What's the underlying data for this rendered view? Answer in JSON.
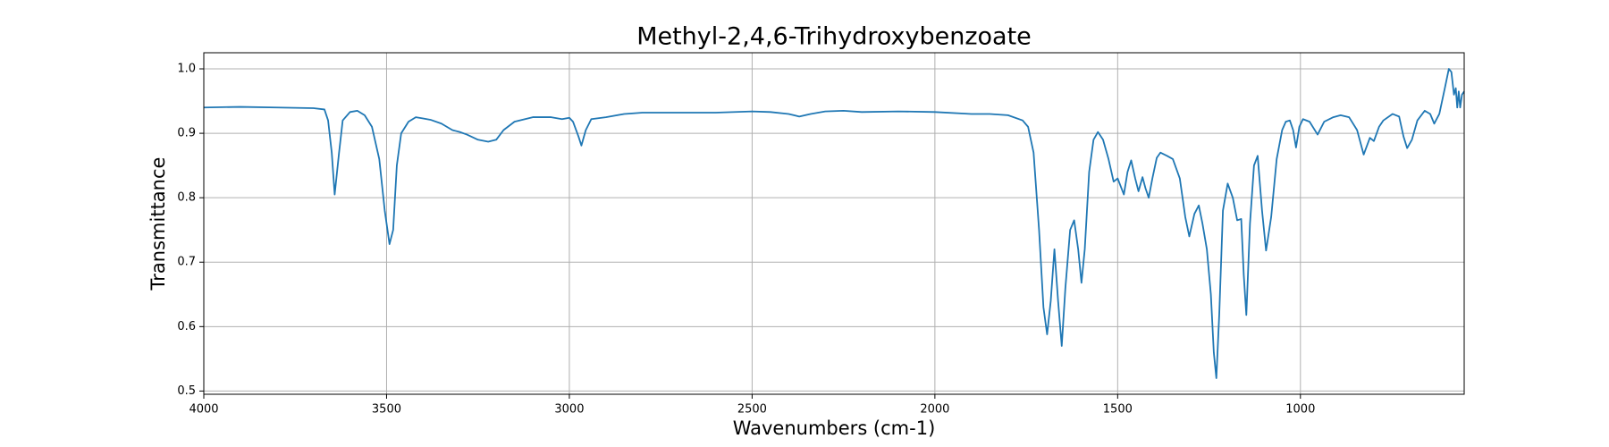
{
  "chart_data": {
    "type": "line",
    "title": "Methyl-2,4,6-Trihydroxybenzoate",
    "x_label": "Wavenumbers (cm-1)",
    "y_label": "Transmittance",
    "xlim": [
      4000,
      552
    ],
    "ylim": [
      0.495,
      1.025
    ],
    "xticks": [
      4000,
      3500,
      3000,
      2500,
      2000,
      1500,
      1000
    ],
    "yticks": [
      0.5,
      0.6,
      0.7,
      0.8,
      0.9,
      {
        "value": 1,
        "label": "1.0"
      }
    ],
    "grid": true,
    "x": [
      4000,
      3900,
      3800,
      3700,
      3670,
      3660,
      3650,
      3642,
      3630,
      3620,
      3600,
      3580,
      3560,
      3540,
      3520,
      3505,
      3492,
      3482,
      3472,
      3460,
      3440,
      3420,
      3400,
      3380,
      3350,
      3320,
      3300,
      3280,
      3250,
      3222,
      3200,
      3180,
      3150,
      3100,
      3050,
      3020,
      3000,
      2990,
      2975,
      2967,
      2955,
      2940,
      2900,
      2850,
      2800,
      2700,
      2600,
      2500,
      2450,
      2400,
      2371,
      2340,
      2300,
      2250,
      2200,
      2100,
      2000,
      1900,
      1850,
      1800,
      1760,
      1745,
      1730,
      1715,
      1703,
      1693,
      1683,
      1673,
      1663,
      1653,
      1643,
      1630,
      1619,
      1608,
      1599,
      1590,
      1578,
      1566,
      1554,
      1540,
      1525,
      1511,
      1500,
      1483,
      1473,
      1463,
      1452,
      1443,
      1432,
      1424,
      1415,
      1405,
      1393,
      1383,
      1365,
      1349,
      1330,
      1315,
      1304,
      1290,
      1278,
      1268,
      1256,
      1245,
      1237,
      1230,
      1222,
      1212,
      1199,
      1185,
      1173,
      1162,
      1155,
      1148,
      1138,
      1127,
      1117,
      1105,
      1094,
      1080,
      1065,
      1050,
      1040,
      1029,
      1020,
      1012,
      1003,
      993,
      975,
      953,
      935,
      910,
      890,
      867,
      845,
      827,
      810,
      799,
      785,
      773,
      748,
      730,
      718,
      708,
      695,
      680,
      660,
      645,
      634,
      620,
      605,
      594,
      587,
      580,
      575,
      571,
      567,
      563,
      558,
      552
    ],
    "series": [
      {
        "name": "Transmittance",
        "color": "#1f77b4",
        "values": [
          0.94,
          0.941,
          0.94,
          0.939,
          0.937,
          0.92,
          0.87,
          0.805,
          0.87,
          0.92,
          0.933,
          0.935,
          0.928,
          0.91,
          0.86,
          0.78,
          0.728,
          0.75,
          0.85,
          0.9,
          0.918,
          0.925,
          0.923,
          0.921,
          0.915,
          0.905,
          0.902,
          0.898,
          0.89,
          0.887,
          0.89,
          0.905,
          0.918,
          0.925,
          0.925,
          0.922,
          0.924,
          0.918,
          0.895,
          0.881,
          0.905,
          0.922,
          0.925,
          0.93,
          0.932,
          0.932,
          0.932,
          0.934,
          0.933,
          0.93,
          0.926,
          0.93,
          0.934,
          0.935,
          0.933,
          0.934,
          0.933,
          0.93,
          0.93,
          0.928,
          0.92,
          0.91,
          0.87,
          0.75,
          0.63,
          0.588,
          0.64,
          0.72,
          0.64,
          0.57,
          0.66,
          0.75,
          0.765,
          0.72,
          0.668,
          0.72,
          0.84,
          0.89,
          0.902,
          0.89,
          0.86,
          0.825,
          0.83,
          0.805,
          0.84,
          0.858,
          0.83,
          0.81,
          0.832,
          0.815,
          0.8,
          0.83,
          0.862,
          0.87,
          0.865,
          0.86,
          0.83,
          0.77,
          0.74,
          0.775,
          0.788,
          0.76,
          0.72,
          0.65,
          0.56,
          0.52,
          0.62,
          0.78,
          0.822,
          0.8,
          0.765,
          0.767,
          0.68,
          0.618,
          0.76,
          0.85,
          0.865,
          0.78,
          0.718,
          0.77,
          0.86,
          0.905,
          0.918,
          0.92,
          0.905,
          0.878,
          0.91,
          0.922,
          0.918,
          0.898,
          0.918,
          0.925,
          0.928,
          0.925,
          0.905,
          0.867,
          0.893,
          0.888,
          0.91,
          0.92,
          0.93,
          0.926,
          0.895,
          0.877,
          0.89,
          0.92,
          0.935,
          0.93,
          0.915,
          0.93,
          0.97,
          1.0,
          0.995,
          0.96,
          0.97,
          0.94,
          0.965,
          0.94,
          0.96,
          0.965
        ]
      }
    ]
  }
}
